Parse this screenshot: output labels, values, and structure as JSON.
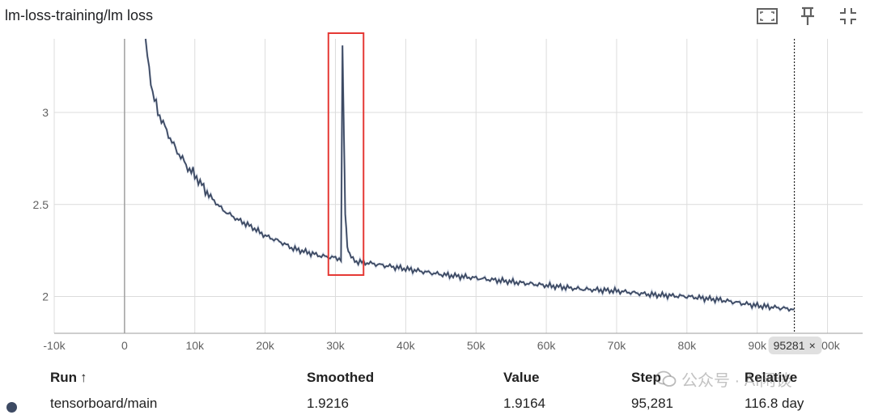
{
  "title": "lm-loss-training/lm loss",
  "toolbar": {
    "icons": [
      "fit-domain-icon",
      "pin-icon",
      "collapse-icon"
    ]
  },
  "colors": {
    "smoothed": "#3d4a63",
    "raw": "#b8c2d6",
    "highlight_box": "#e53935",
    "grid": "#dcdcdc",
    "run_dot": "#3d4a63"
  },
  "chart_data": {
    "type": "line",
    "title": "lm-loss-training/lm loss",
    "xlabel": "",
    "ylabel": "",
    "xlim": [
      -10000,
      105000
    ],
    "ylim": [
      1.8,
      3.4
    ],
    "x_ticks": [
      -10000,
      0,
      10000,
      20000,
      30000,
      40000,
      50000,
      60000,
      70000,
      80000,
      90000,
      100000
    ],
    "x_tick_labels": [
      "-10k",
      "0",
      "10k",
      "20k",
      "30k",
      "40k",
      "50k",
      "60k",
      "70k",
      "80k",
      "90k",
      "100k"
    ],
    "y_ticks": [
      2,
      2.5,
      3
    ],
    "y_tick_labels": [
      "2",
      "2.5",
      "3"
    ],
    "grid": true,
    "series": [
      {
        "name": "tensorboard/main",
        "x": [
          3000,
          4000,
          5000,
          6000,
          7000,
          8000,
          9000,
          10000,
          12000,
          14000,
          16000,
          18000,
          20000,
          22000,
          24000,
          26000,
          28000,
          30000,
          30800,
          31000,
          31200,
          31400,
          31700,
          32000,
          32500,
          33000,
          35000,
          40000,
          45000,
          50000,
          55000,
          60000,
          65000,
          70000,
          75000,
          80000,
          85000,
          90000,
          95281
        ],
        "values": [
          3.39,
          3.1,
          2.98,
          2.9,
          2.82,
          2.76,
          2.7,
          2.66,
          2.55,
          2.47,
          2.42,
          2.38,
          2.33,
          2.3,
          2.26,
          2.24,
          2.22,
          2.21,
          2.2,
          3.35,
          2.9,
          2.45,
          2.28,
          2.23,
          2.2,
          2.19,
          2.18,
          2.15,
          2.12,
          2.1,
          2.08,
          2.06,
          2.04,
          2.03,
          2.01,
          2.0,
          1.98,
          1.95,
          1.93
        ]
      }
    ],
    "highlight_box_x": [
      29000,
      34000
    ],
    "hover_step": 95281,
    "hover_label": "95281"
  },
  "table": {
    "headers": {
      "run": "Run",
      "sort_arrow": "↑",
      "smoothed": "Smoothed",
      "value": "Value",
      "step": "Step",
      "relative": "Relative"
    },
    "rows": [
      {
        "run": "tensorboard/main",
        "smoothed": "1.9216",
        "value": "1.9164",
        "step": "95,281",
        "relative": "116.8 day"
      }
    ]
  },
  "watermark": {
    "text": "公众号 · AI闲谈",
    "icon": "wechat-icon"
  }
}
